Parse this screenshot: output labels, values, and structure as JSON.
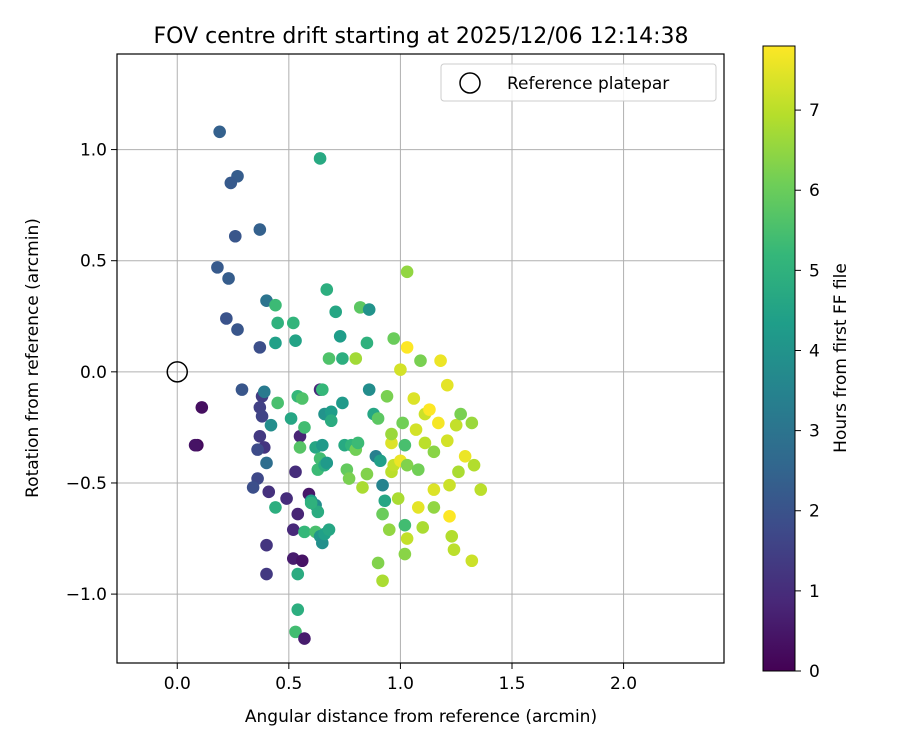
{
  "chart_data": {
    "type": "scatter",
    "title": "FOV centre drift starting at 2025/12/06 12:14:38",
    "xlabel": "Angular distance from reference (arcmin)",
    "ylabel": "Rotation from reference (arcmin)",
    "xlim": [
      -0.27,
      2.45
    ],
    "ylim": [
      -1.31,
      1.43
    ],
    "x_ticks": [
      0.0,
      0.5,
      1.0,
      1.5,
      2.0
    ],
    "x_tick_labels": [
      "0.0",
      "0.5",
      "1.0",
      "1.5",
      "2.0"
    ],
    "y_ticks": [
      -1.0,
      -0.5,
      0.0,
      0.5,
      1.0
    ],
    "y_tick_labels": [
      "−1.0",
      "−0.5",
      "0.0",
      "0.5",
      "1.0"
    ],
    "grid": true,
    "legend": {
      "position": "top-right",
      "entries": [
        "Reference platepar"
      ]
    },
    "reference_point": {
      "x": 0.0,
      "y": 0.0
    },
    "colorbar": {
      "label": "Hours from first FF file",
      "range": [
        0,
        7.8
      ],
      "ticks": [
        0,
        1,
        2,
        3,
        4,
        5,
        6,
        7
      ],
      "tick_labels": [
        "0",
        "1",
        "2",
        "3",
        "4",
        "5",
        "6",
        "7"
      ],
      "colormap": [
        "#440154",
        "#482878",
        "#3e4989",
        "#31688e",
        "#26828e",
        "#1f9e89",
        "#35b779",
        "#6ece58",
        "#b5de2b",
        "#fde725"
      ]
    },
    "points": [
      [
        0.09,
        -0.33,
        0.2
      ],
      [
        0.11,
        -0.16,
        0.3
      ],
      [
        0.08,
        -0.33,
        0.4
      ],
      [
        0.29,
        -0.08,
        2.1
      ],
      [
        0.19,
        1.08,
        2.4
      ],
      [
        0.27,
        0.88,
        2.3
      ],
      [
        0.24,
        0.85,
        2.2
      ],
      [
        0.26,
        0.61,
        2.1
      ],
      [
        0.37,
        0.64,
        2.4
      ],
      [
        0.18,
        0.47,
        2.2
      ],
      [
        0.23,
        0.42,
        2.3
      ],
      [
        0.22,
        0.24,
        2.0
      ],
      [
        0.27,
        0.19,
        2.1
      ],
      [
        0.37,
        0.11,
        1.9
      ],
      [
        0.4,
        0.32,
        3.0
      ],
      [
        0.38,
        -0.11,
        1.4
      ],
      [
        0.37,
        -0.16,
        1.5
      ],
      [
        0.38,
        -0.2,
        1.6
      ],
      [
        0.37,
        -0.29,
        1.3
      ],
      [
        0.39,
        -0.34,
        1.2
      ],
      [
        0.36,
        -0.35,
        1.8
      ],
      [
        0.4,
        -0.41,
        2.8
      ],
      [
        0.36,
        -0.48,
        1.7
      ],
      [
        0.34,
        -0.52,
        1.9
      ],
      [
        0.41,
        -0.54,
        1.1
      ],
      [
        0.49,
        -0.57,
        1.0
      ],
      [
        0.4,
        -0.78,
        1.2
      ],
      [
        0.4,
        -0.91,
        1.3
      ],
      [
        0.39,
        -0.09,
        3.2
      ],
      [
        0.42,
        -0.24,
        3.8
      ],
      [
        0.45,
        -0.14,
        5.5
      ],
      [
        0.44,
        -0.61,
        4.9
      ],
      [
        0.44,
        0.13,
        4.4
      ],
      [
        0.45,
        0.22,
        5.0
      ],
      [
        0.52,
        0.22,
        5.1
      ],
      [
        0.53,
        0.14,
        4.5
      ],
      [
        0.44,
        0.3,
        5.3
      ],
      [
        0.51,
        -0.21,
        4.6
      ],
      [
        0.54,
        -0.11,
        5.2
      ],
      [
        0.56,
        -0.12,
        5.6
      ],
      [
        0.55,
        -0.29,
        0.8
      ],
      [
        0.57,
        -0.25,
        5.4
      ],
      [
        0.55,
        -0.34,
        5.7
      ],
      [
        0.53,
        -0.45,
        1.0
      ],
      [
        0.54,
        -0.64,
        0.8
      ],
      [
        0.52,
        -0.71,
        0.9
      ],
      [
        0.52,
        -0.84,
        0.6
      ],
      [
        0.56,
        -0.85,
        0.4
      ],
      [
        0.59,
        -0.55,
        0.5
      ],
      [
        0.57,
        -0.72,
        5.2
      ],
      [
        0.6,
        -0.58,
        4.3
      ],
      [
        0.62,
        -0.6,
        3.8
      ],
      [
        0.63,
        -0.63,
        4.8
      ],
      [
        0.62,
        -0.72,
        5.5
      ],
      [
        0.6,
        -0.59,
        5.0
      ],
      [
        0.64,
        -0.74,
        4.1
      ],
      [
        0.65,
        -0.77,
        3.9
      ],
      [
        0.66,
        -0.73,
        4.4
      ],
      [
        0.62,
        -0.34,
        4.6
      ],
      [
        0.65,
        -0.33,
        4.2
      ],
      [
        0.64,
        -0.39,
        5.4
      ],
      [
        0.63,
        -0.44,
        5.3
      ],
      [
        0.66,
        -0.42,
        4.8
      ],
      [
        0.64,
        -0.08,
        0.9
      ],
      [
        0.65,
        -0.08,
        5.2
      ],
      [
        0.66,
        -0.19,
        4.0
      ],
      [
        0.69,
        -0.18,
        4.3
      ],
      [
        0.69,
        -0.22,
        4.8
      ],
      [
        0.67,
        -0.41,
        4.2
      ],
      [
        0.68,
        -0.71,
        4.6
      ],
      [
        0.54,
        -0.91,
        4.8
      ],
      [
        0.54,
        -1.07,
        4.9
      ],
      [
        0.53,
        -1.17,
        5.4
      ],
      [
        0.57,
        -1.2,
        0.6
      ],
      [
        0.64,
        0.96,
        4.7
      ],
      [
        0.67,
        0.37,
        4.9
      ],
      [
        0.71,
        0.27,
        4.6
      ],
      [
        0.68,
        0.06,
        5.6
      ],
      [
        0.73,
        0.16,
        4.3
      ],
      [
        0.74,
        0.06,
        4.9
      ],
      [
        0.74,
        -0.14,
        4.2
      ],
      [
        0.75,
        -0.33,
        4.7
      ],
      [
        0.78,
        -0.33,
        5.1
      ],
      [
        0.76,
        -0.44,
        5.9
      ],
      [
        0.77,
        -0.48,
        6.2
      ],
      [
        0.8,
        -0.35,
        6.1
      ],
      [
        0.81,
        -0.32,
        5.3
      ],
      [
        0.8,
        0.06,
        6.7
      ],
      [
        0.82,
        0.29,
        5.8
      ],
      [
        0.85,
        0.13,
        5.0
      ],
      [
        0.86,
        0.28,
        4.0
      ],
      [
        0.86,
        -0.08,
        3.8
      ],
      [
        0.83,
        -0.52,
        6.8
      ],
      [
        0.85,
        -0.46,
        6.3
      ],
      [
        0.88,
        -0.19,
        4.6
      ],
      [
        0.89,
        -0.38,
        3.4
      ],
      [
        0.9,
        -0.21,
        5.8
      ],
      [
        0.92,
        -0.51,
        3.5
      ],
      [
        0.93,
        -0.58,
        4.6
      ],
      [
        0.91,
        -0.4,
        4.4
      ],
      [
        0.92,
        -0.64,
        6.0
      ],
      [
        0.9,
        -0.86,
        6.3
      ],
      [
        0.92,
        -0.94,
        6.8
      ],
      [
        0.95,
        -0.71,
        6.5
      ],
      [
        0.96,
        -0.45,
        7.0
      ],
      [
        0.94,
        -0.11,
        6.2
      ],
      [
        0.96,
        -0.32,
        7.4
      ],
      [
        0.97,
        -0.42,
        7.1
      ],
      [
        0.96,
        -0.28,
        6.6
      ],
      [
        0.99,
        -0.57,
        6.8
      ],
      [
        0.97,
        0.15,
        6.0
      ],
      [
        1.0,
        0.01,
        7.3
      ],
      [
        1.01,
        -0.23,
        6.1
      ],
      [
        1.02,
        -0.33,
        5.5
      ],
      [
        1.0,
        -0.4,
        7.6
      ],
      [
        1.03,
        -0.42,
        6.3
      ],
      [
        1.02,
        -0.69,
        5.4
      ],
      [
        1.03,
        -0.75,
        7.1
      ],
      [
        1.02,
        -0.82,
        6.4
      ],
      [
        1.03,
        0.45,
        6.5
      ],
      [
        1.03,
        0.11,
        7.8
      ],
      [
        1.06,
        -0.12,
        7.4
      ],
      [
        1.07,
        -0.26,
        7.3
      ],
      [
        1.08,
        -0.44,
        6.1
      ],
      [
        1.08,
        -0.61,
        7.5
      ],
      [
        1.1,
        -0.7,
        6.8
      ],
      [
        1.09,
        0.05,
        6.2
      ],
      [
        1.11,
        -0.32,
        7.0
      ],
      [
        1.11,
        -0.19,
        7.2
      ],
      [
        1.13,
        -0.17,
        7.8
      ],
      [
        1.15,
        -0.36,
        6.4
      ],
      [
        1.15,
        -0.53,
        7.4
      ],
      [
        1.15,
        -0.61,
        6.5
      ],
      [
        1.17,
        -0.23,
        7.7
      ],
      [
        1.18,
        0.05,
        7.6
      ],
      [
        1.21,
        -0.06,
        7.5
      ],
      [
        1.21,
        -0.31,
        7.3
      ],
      [
        1.22,
        -0.51,
        7.2
      ],
      [
        1.22,
        -0.65,
        7.8
      ],
      [
        1.23,
        -0.74,
        6.9
      ],
      [
        1.24,
        -0.8,
        7.0
      ],
      [
        1.25,
        -0.24,
        7.1
      ],
      [
        1.27,
        -0.19,
        6.2
      ],
      [
        1.26,
        -0.45,
        6.8
      ],
      [
        1.29,
        -0.38,
        7.6
      ],
      [
        1.32,
        -0.23,
        6.6
      ],
      [
        1.33,
        -0.42,
        6.9
      ],
      [
        1.32,
        -0.85,
        7.2
      ],
      [
        1.36,
        -0.53,
        7.0
      ]
    ]
  }
}
